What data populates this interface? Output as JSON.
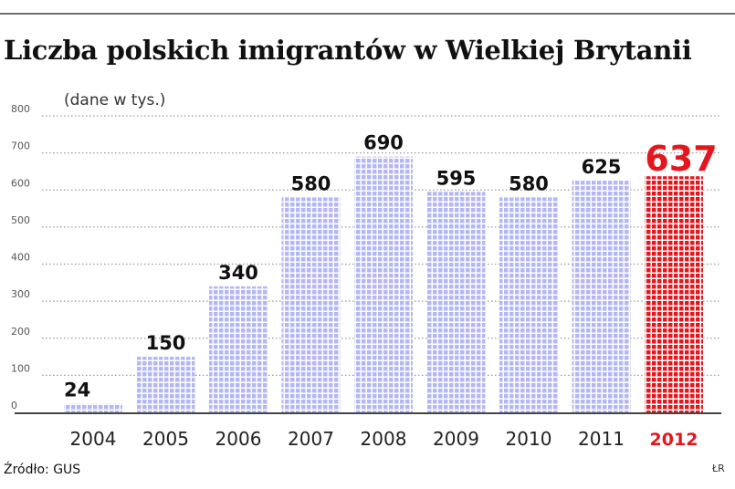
{
  "title": "Liczba polskich imigrantów w Wielkiej Brytanii",
  "unit_note": "(dane w tys.)",
  "source": "Źródło: GUS",
  "credit": "ŁR",
  "colors": {
    "bar": "#b3b7f3",
    "highlight": "#e3181f",
    "grid": "#9a9a9a",
    "axis": "#444444"
  },
  "chart_data": {
    "type": "bar",
    "title": "Liczba polskich imigrantów w Wielkiej Brytanii",
    "ylabel": "(dane w tys.)",
    "categories": [
      "2004",
      "2005",
      "2006",
      "2007",
      "2008",
      "2009",
      "2010",
      "2011",
      "2012"
    ],
    "values": [
      24,
      150,
      340,
      580,
      690,
      595,
      580,
      625,
      637
    ],
    "value_labels": [
      "24",
      "150",
      "340",
      "580",
      "690",
      "595",
      "580",
      "625",
      "637"
    ],
    "highlight": "2012",
    "ylim": [
      0,
      800
    ],
    "yticks": [
      "0",
      "100",
      "200",
      "300",
      "400",
      "500",
      "600",
      "700",
      "800"
    ],
    "grid": true,
    "legend": "none"
  }
}
